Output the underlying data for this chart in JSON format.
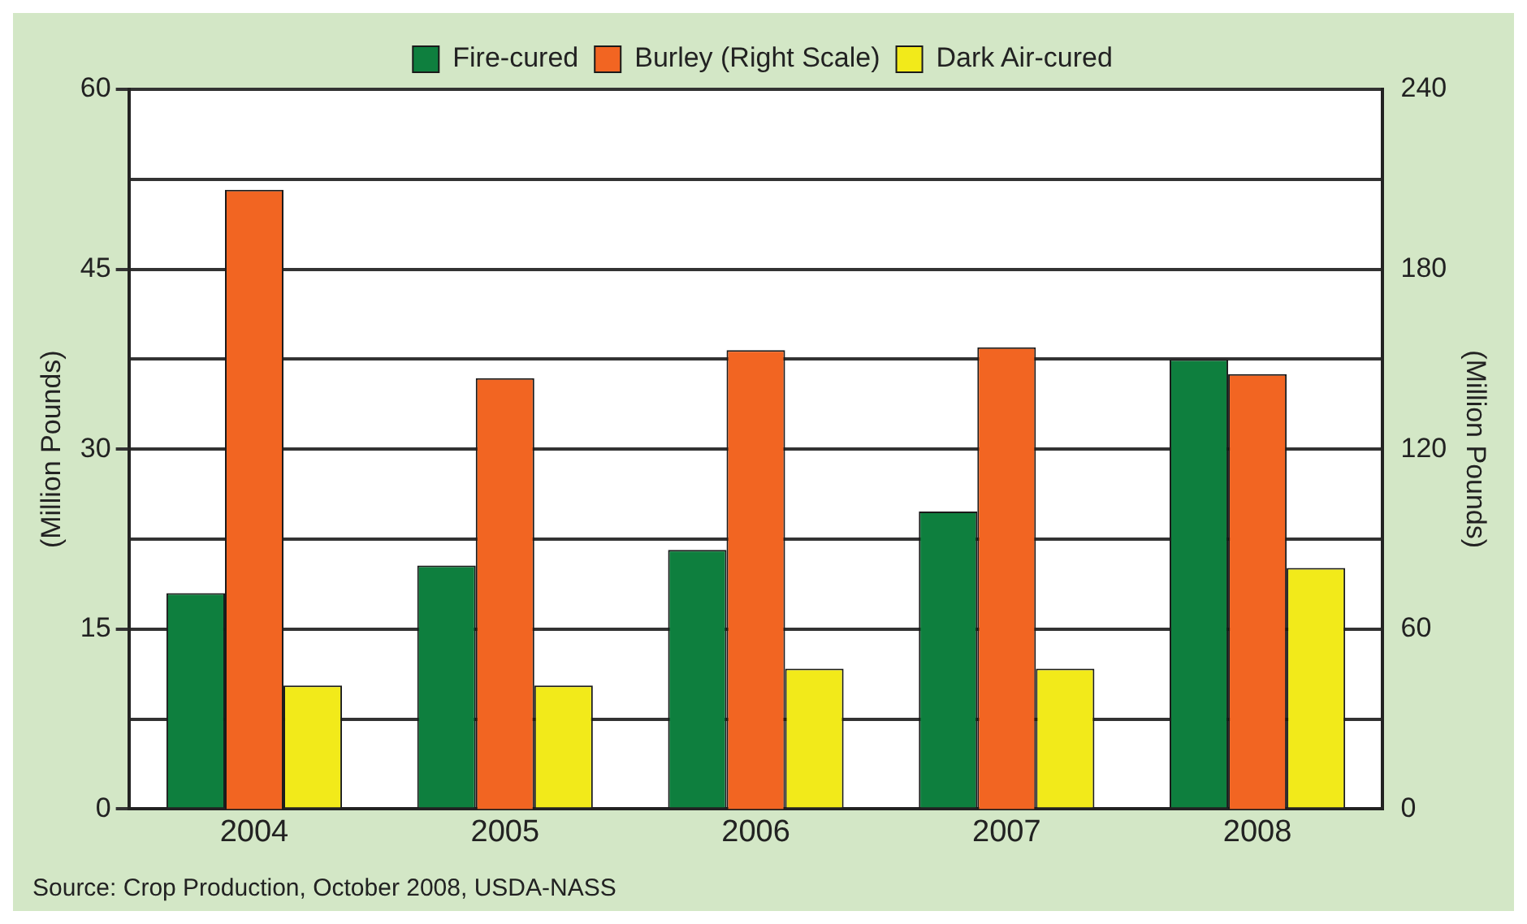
{
  "chart_data": {
    "type": "bar",
    "categories": [
      "2004",
      "2005",
      "2006",
      "2007",
      "2008"
    ],
    "series": [
      {
        "name": "Fire-cured",
        "color": "#0e7f3e",
        "values": [
          18,
          20.3,
          21.6,
          24.8,
          37.5
        ]
      },
      {
        "name": "Burley (Right Scale)",
        "color": "#f26522",
        "values": [
          206.5,
          143.7,
          153,
          154,
          145
        ],
        "axis": "y2"
      },
      {
        "name": "Dark Air-cured",
        "color": "#f2ea1a",
        "values": [
          10.3,
          10.3,
          11.7,
          11.7,
          20.1
        ]
      }
    ],
    "ylabel": "(Million Pounds)",
    "y2label": "(Million Pounds)",
    "ylim": [
      0,
      60
    ],
    "yticks": [
      0,
      {
        "value": 7.5,
        "label": null
      },
      15,
      {
        "value": 22.5,
        "label": null
      },
      30,
      {
        "value": 37.5,
        "label": null
      },
      45,
      {
        "value": 52.5,
        "label": null
      },
      60
    ],
    "y2lim": [
      0,
      240
    ],
    "y2ticks": [
      0,
      60,
      120,
      180,
      240
    ],
    "grid": "y",
    "legend": "top",
    "annotations": [
      "Source: Crop Production, October 2008, USDA-NASS"
    ]
  }
}
